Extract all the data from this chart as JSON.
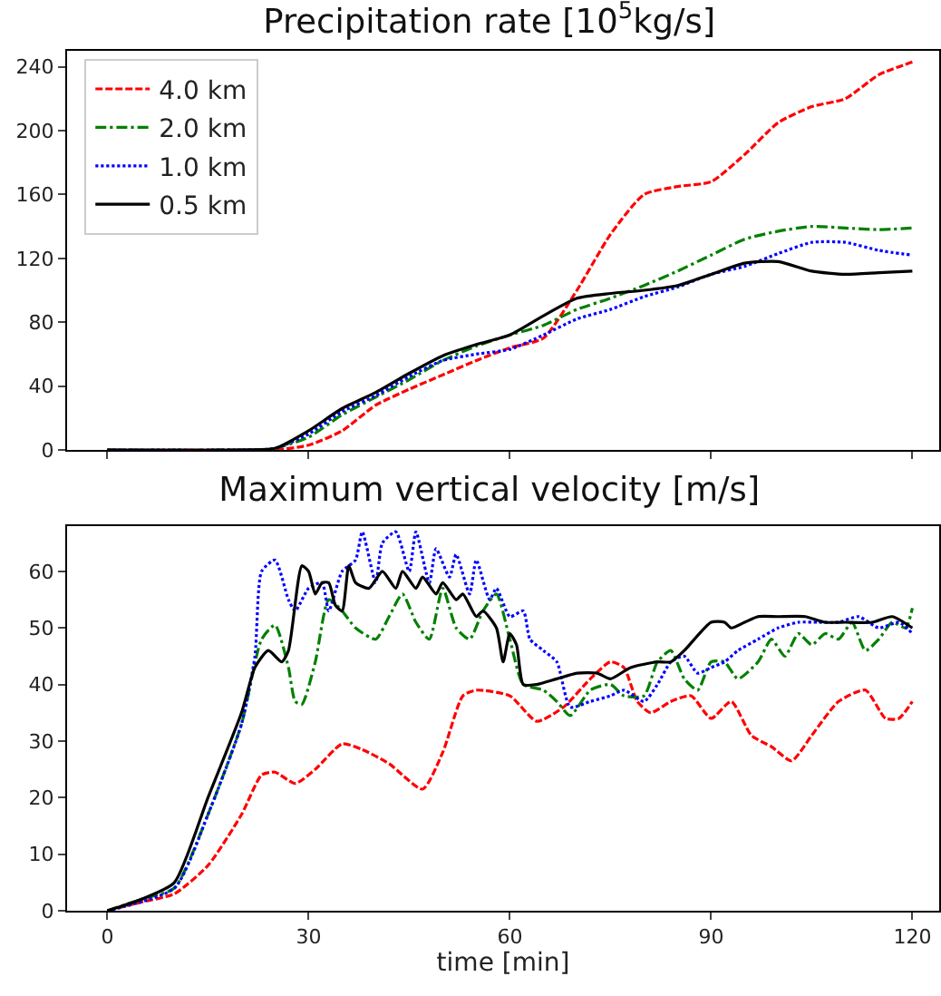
{
  "chart_data": [
    {
      "type": "line",
      "title": "Precipitation rate [10$^{5}$kg/s]",
      "xlim": [
        -6,
        124
      ],
      "xticks": [
        {
          "value": 0,
          "label": null
        },
        {
          "value": 30,
          "label": null
        },
        {
          "value": 60,
          "label": null
        },
        {
          "value": 90,
          "label": null
        },
        {
          "value": 120,
          "label": null
        }
      ],
      "ylim": [
        0,
        250
      ],
      "yticks": [
        0,
        40,
        80,
        120,
        160,
        200,
        240
      ],
      "tick_labels": "y",
      "legend": "top left",
      "grid": false,
      "x": [
        0,
        20,
        25,
        30,
        35,
        40,
        45,
        50,
        55,
        60,
        65,
        70,
        75,
        80,
        85,
        90,
        95,
        100,
        105,
        110,
        115,
        120
      ],
      "series": [
        {
          "name": "4.0 km",
          "color": "#ff0000",
          "line_style": "dashed",
          "values": [
            0,
            0,
            0,
            3,
            12,
            28,
            38,
            47,
            56,
            64,
            70,
            100,
            135,
            160,
            165,
            168,
            185,
            205,
            215,
            220,
            235,
            243
          ]
        },
        {
          "name": "2.0 km",
          "color": "#008000",
          "line_style": "dashdot",
          "values": [
            0,
            0,
            1,
            8,
            22,
            33,
            44,
            56,
            65,
            72,
            78,
            88,
            95,
            103,
            112,
            122,
            132,
            137,
            140,
            139,
            138,
            139
          ]
        },
        {
          "name": "1.0 km",
          "color": "#0000ff",
          "line_style": "dotted",
          "values": [
            0,
            0,
            1,
            10,
            24,
            34,
            46,
            56,
            60,
            63,
            72,
            82,
            88,
            96,
            102,
            110,
            115,
            123,
            130,
            130,
            125,
            122
          ]
        },
        {
          "name": "0.5 km",
          "color": "#000000",
          "line_style": "solid",
          "values": [
            0,
            0,
            1,
            12,
            26,
            36,
            48,
            59,
            66,
            72,
            84,
            95,
            98,
            100,
            103,
            110,
            117,
            118,
            112,
            110,
            111,
            112
          ]
        }
      ]
    },
    {
      "type": "line",
      "title": "Maximum vertical velocity [m/s]",
      "xlabel": "time [min]",
      "xlim": [
        -6,
        124
      ],
      "xticks": [
        0,
        30,
        60,
        90,
        120
      ],
      "ylim": [
        0,
        68
      ],
      "yticks": [
        0,
        10,
        20,
        30,
        40,
        50,
        60
      ],
      "legend": false,
      "grid": false,
      "series": [
        {
          "color": "#ff0000",
          "line_style": "dashed",
          "x": [
            0,
            5,
            10,
            15,
            20,
            23,
            25,
            28,
            31,
            35,
            38,
            42,
            47,
            50,
            53,
            55,
            60,
            64,
            68,
            72,
            75,
            77,
            79,
            81,
            84,
            87,
            90,
            93,
            96,
            99,
            102,
            105,
            109,
            113,
            116,
            118,
            120
          ],
          "values": [
            0,
            1.5,
            3,
            8,
            17,
            24,
            24.5,
            22.5,
            25,
            29.5,
            28.5,
            26,
            21.5,
            28,
            38,
            39,
            38,
            33.5,
            36,
            41,
            44,
            43,
            37,
            35,
            37,
            38,
            34,
            37,
            31,
            29,
            26.5,
            31,
            37,
            39,
            34,
            34,
            37
          ]
        },
        {
          "color": "#008000",
          "line_style": "dashdot",
          "x": [
            0,
            5,
            10,
            15,
            20,
            23,
            25,
            27,
            28,
            29,
            31,
            33,
            35,
            37,
            40,
            42,
            44,
            46,
            48,
            50,
            52,
            54,
            56,
            58,
            60,
            62,
            65,
            67,
            69,
            72,
            75,
            77,
            80,
            82,
            84,
            86,
            88,
            90,
            92,
            94,
            97,
            99,
            101,
            103,
            105,
            107,
            109,
            111,
            113,
            115,
            117,
            119,
            120
          ],
          "values": [
            0,
            2,
            4,
            17,
            33,
            48,
            50.5,
            43,
            37,
            36.5,
            44,
            55,
            53,
            50,
            48,
            52,
            56,
            51,
            48,
            57,
            50,
            48,
            53,
            56,
            48,
            40,
            39,
            37,
            34.5,
            39,
            40,
            38,
            38,
            44,
            46,
            41,
            39,
            44,
            44,
            41,
            44,
            48,
            45,
            49,
            47,
            49,
            48,
            51,
            46,
            48,
            51,
            50,
            53.5
          ]
        },
        {
          "color": "#0000ff",
          "line_style": "dotted",
          "x": [
            0,
            10,
            15,
            20,
            22,
            23,
            25,
            27,
            28,
            30,
            32,
            33,
            35,
            37,
            38,
            40,
            41,
            43,
            45,
            46,
            48,
            49,
            51,
            52,
            54,
            55,
            57,
            58,
            60,
            62,
            63,
            65,
            67,
            69,
            72,
            75,
            77,
            80,
            82,
            84,
            86,
            88,
            90,
            92,
            94,
            97,
            100,
            103,
            106,
            109,
            112,
            115,
            118,
            120
          ],
          "values": [
            0,
            4,
            17,
            33,
            45,
            60,
            62,
            55,
            53,
            57,
            58,
            53,
            60,
            62,
            67,
            58,
            65,
            67,
            60,
            67,
            58,
            64,
            59,
            63,
            56,
            62,
            55,
            57,
            52,
            53,
            48,
            46,
            44,
            36,
            37,
            38,
            39,
            37,
            40,
            44,
            45,
            42,
            43,
            44,
            46,
            48,
            50,
            51,
            51,
            51,
            52,
            50,
            51,
            49
          ]
        },
        {
          "color": "#000000",
          "line_style": "solid",
          "x": [
            0,
            5,
            10,
            15,
            20,
            22,
            24,
            26,
            27,
            29,
            30,
            31,
            32,
            33,
            34,
            35,
            36,
            37,
            39,
            41,
            43,
            44,
            46,
            47,
            49,
            50,
            52,
            53,
            55,
            56,
            58,
            59,
            60,
            61,
            62,
            64,
            67,
            70,
            73,
            75,
            78,
            82,
            84,
            86,
            90,
            92,
            93,
            95,
            97,
            100,
            104,
            107,
            110,
            114,
            117,
            120
          ],
          "values": [
            0,
            2,
            5,
            20,
            35,
            43,
            46,
            44,
            46,
            61,
            60,
            56,
            58,
            58,
            54,
            53,
            61,
            58,
            57,
            60,
            57,
            60,
            57,
            59,
            56,
            58,
            55,
            56,
            52,
            53,
            50,
            44,
            49,
            47,
            40,
            40,
            41,
            42,
            42,
            41,
            43,
            44,
            44,
            46,
            51,
            51,
            50,
            51,
            52,
            52,
            52,
            51,
            51,
            51,
            52,
            50
          ]
        }
      ]
    }
  ]
}
